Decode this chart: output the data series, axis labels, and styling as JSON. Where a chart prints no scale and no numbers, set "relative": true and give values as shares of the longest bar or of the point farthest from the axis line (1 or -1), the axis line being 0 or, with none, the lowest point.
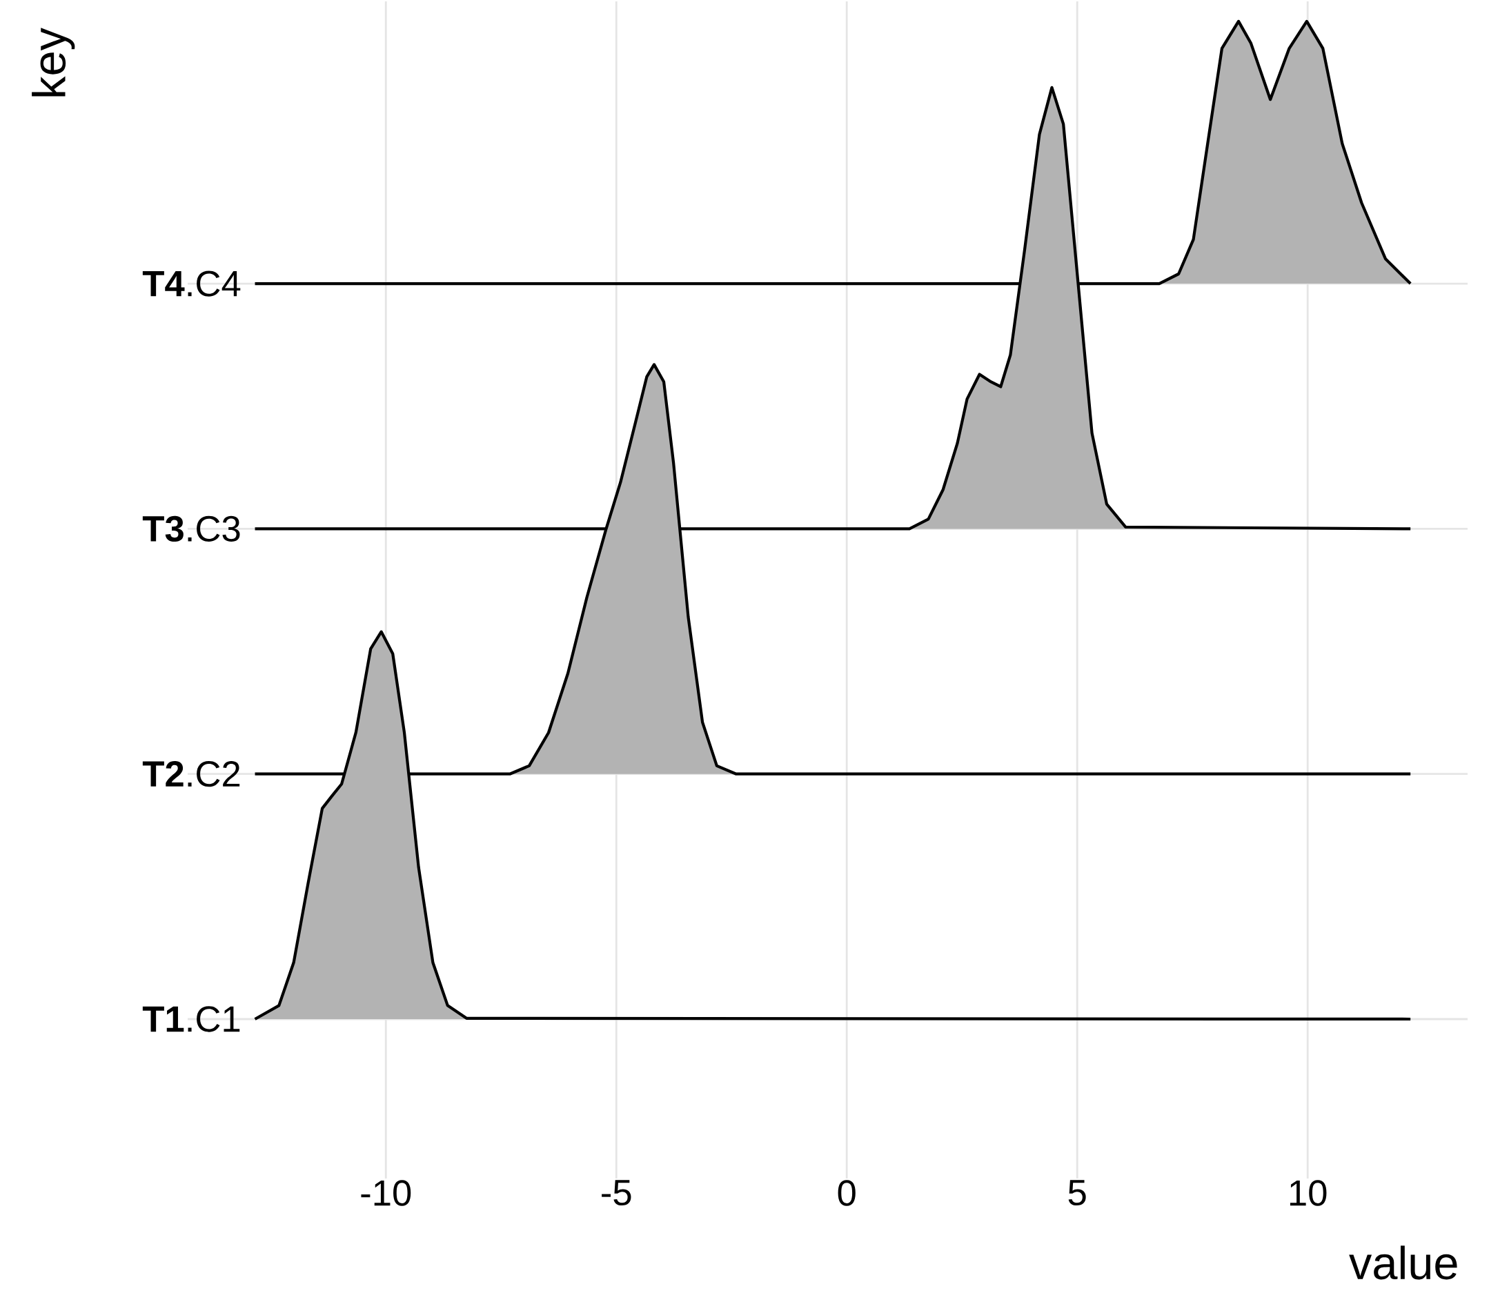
{
  "chart_data": [
    {
      "type": "area",
      "relative": true,
      "ylabel": "key",
      "xlim": [
        -14.3,
        13.47
      ],
      "xticks": [
        -10,
        -5,
        0,
        5,
        10
      ],
      "grid": "x",
      "tick_labels": false,
      "series": [
        {
          "name": "**T4**.C4",
          "color": "#b3b3b3",
          "x": [
            -12.84,
            6.78,
            7.2,
            7.52,
            7.83,
            8.14,
            8.5,
            8.77,
            9.19,
            9.6,
            9.98,
            10.33,
            10.75,
            11.17,
            11.69,
            12.23
          ],
          "values": [
            0,
            0,
            0.037,
            0.168,
            0.534,
            0.897,
            1,
            0.916,
            0.702,
            0.897,
            1,
            0.897,
            0.534,
            0.308,
            0.094,
            0
          ]
        }
      ]
    },
    {
      "type": "area",
      "relative": true,
      "xlim": [
        -14.3,
        13.47
      ],
      "xticks": [
        -10,
        -5,
        0,
        5,
        10
      ],
      "tick_labels": false,
      "series": [
        {
          "name": "**T3**.C3",
          "color": "#b3b3b3",
          "x": [
            -12.84,
            1.36,
            1.77,
            2.09,
            2.4,
            2.61,
            2.88,
            3.13,
            3.34,
            3.55,
            3.86,
            4.18,
            4.45,
            4.7,
            5.01,
            5.32,
            5.64,
            6.05,
            12.23
          ],
          "values": [
            0,
            0,
            0.022,
            0.089,
            0.194,
            0.294,
            0.35,
            0.333,
            0.322,
            0.394,
            0.633,
            0.894,
            1,
            0.917,
            0.567,
            0.217,
            0.056,
            0.004,
            0
          ]
        }
      ]
    },
    {
      "type": "area",
      "relative": true,
      "xlim": [
        -14.3,
        13.47
      ],
      "xticks": [
        -10,
        -5,
        0,
        5,
        10
      ],
      "tick_labels": false,
      "series": [
        {
          "name": "**T2**.C2",
          "color": "#b3b3b3",
          "x": [
            -12.84,
            -7.31,
            -6.89,
            -6.47,
            -6.05,
            -5.64,
            -5.22,
            -4.91,
            -4.59,
            -4.34,
            -4.18,
            -3.97,
            -3.76,
            -3.44,
            -3.13,
            -2.82,
            -2.4,
            12.23
          ],
          "values": [
            0,
            0,
            0.02,
            0.101,
            0.246,
            0.431,
            0.599,
            0.712,
            0.856,
            0.97,
            1,
            0.958,
            0.761,
            0.384,
            0.126,
            0.02,
            0,
            0
          ]
        }
      ]
    },
    {
      "type": "area",
      "relative": true,
      "xlabel": "value",
      "xlim": [
        -14.3,
        13.47
      ],
      "xticks": [
        -10,
        -5,
        0,
        5,
        10
      ],
      "tick_labels": "x",
      "series": [
        {
          "name": "**T1**.C1",
          "color": "#b3b3b3",
          "x": [
            -12.84,
            -12.32,
            -12.0,
            -11.69,
            -11.38,
            -11.17,
            -10.96,
            -10.65,
            -10.33,
            -10.1,
            -9.85,
            -9.6,
            -9.29,
            -8.98,
            -8.66,
            -8.25,
            12.23
          ],
          "values": [
            0,
            0.035,
            0.146,
            0.349,
            0.544,
            0.576,
            0.607,
            0.74,
            0.956,
            1,
            0.943,
            0.74,
            0.392,
            0.146,
            0.035,
            0.002,
            0
          ]
        }
      ]
    }
  ]
}
